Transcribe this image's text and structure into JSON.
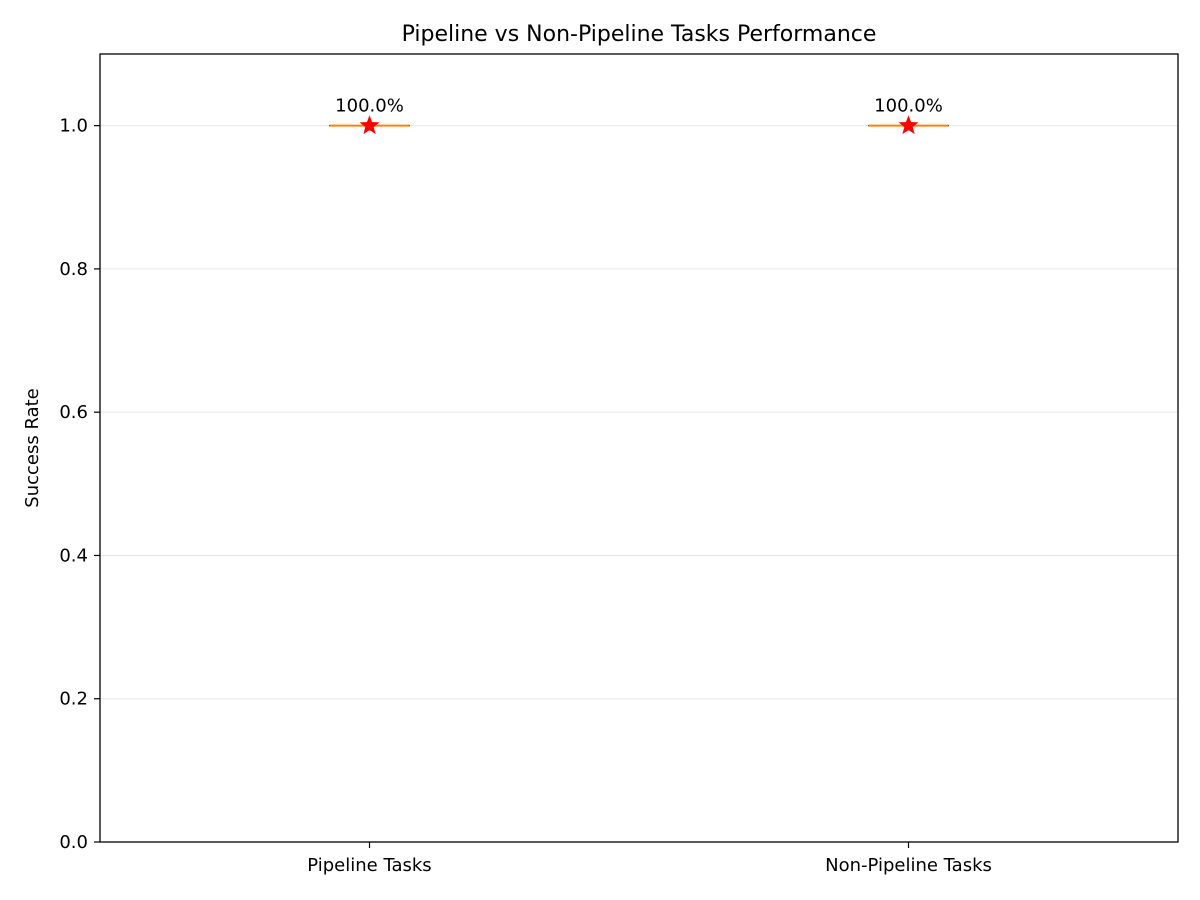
{
  "chart_data": {
    "type": "box",
    "title": "Pipeline vs Non-Pipeline Tasks Performance",
    "xlabel": "",
    "ylabel": "Success Rate",
    "ylim": [
      0,
      1.1
    ],
    "yticks": [
      0.0,
      0.2,
      0.4,
      0.6,
      0.8,
      1.0
    ],
    "ytick_labels": [
      "0.0",
      "0.2",
      "0.4",
      "0.6",
      "0.8",
      "1.0"
    ],
    "grid": "y",
    "categories": [
      "Pipeline Tasks",
      "Non-Pipeline Tasks"
    ],
    "series": [
      {
        "name": "Pipeline Tasks",
        "min": 1.0,
        "q1": 1.0,
        "median": 1.0,
        "q3": 1.0,
        "max": 1.0,
        "mean": 1.0,
        "mean_label": "100.0%"
      },
      {
        "name": "Non-Pipeline Tasks",
        "min": 1.0,
        "q1": 1.0,
        "median": 1.0,
        "q3": 1.0,
        "max": 1.0,
        "mean": 1.0,
        "mean_label": "100.0%"
      }
    ],
    "colors": {
      "median": "#ff7f0e",
      "mean_marker": "#ff0000",
      "grid": "#e6e6e6",
      "axis": "#000000"
    }
  }
}
